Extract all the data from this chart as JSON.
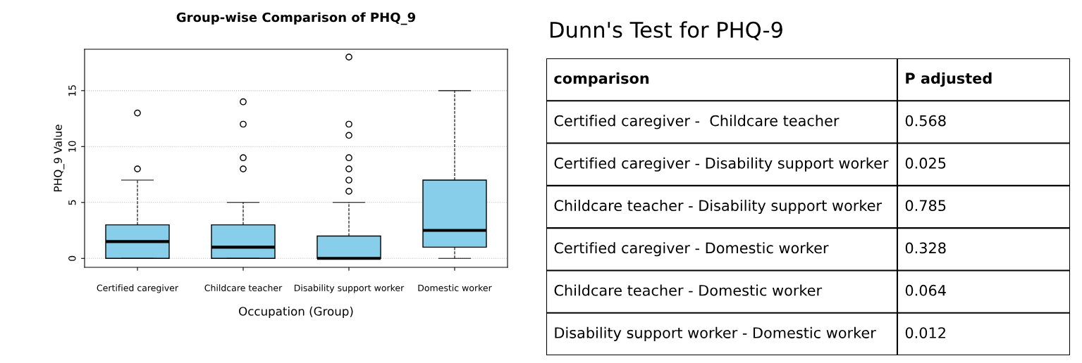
{
  "chart_data": [
    {
      "type": "box",
      "title": "Group-wise Comparison of PHQ_9",
      "xlabel": "Occupation (Group)",
      "ylabel": "PHQ_9 Value",
      "categories": [
        "Certified caregiver",
        "Childcare teacher",
        "Disability support worker",
        "Domestic worker"
      ],
      "color": "#87ceeb",
      "boxes": [
        {
          "low": 0,
          "q1": 0,
          "median": 1.5,
          "q3": 3,
          "high": 7,
          "outliers": [
            8,
            13
          ]
        },
        {
          "low": 0,
          "q1": 0,
          "median": 1,
          "q3": 3,
          "high": 5,
          "outliers": [
            8,
            9,
            12,
            14
          ]
        },
        {
          "low": 0,
          "q1": 0,
          "median": 0,
          "q3": 2,
          "high": 5,
          "outliers": [
            6,
            7,
            8,
            9,
            11,
            12,
            18
          ]
        },
        {
          "low": 0,
          "q1": 1,
          "median": 2.5,
          "q3": 7,
          "high": 15
        }
      ],
      "ylim": [
        -0.8,
        18.7
      ],
      "yticks": [
        0,
        5,
        10,
        15
      ],
      "grid": "y",
      "marker": "circle"
    },
    {
      "type": "other",
      "title": "Dunn's Test for PHQ-9",
      "categories": [
        "comparison",
        "P adjusted"
      ],
      "y_categories": [
        "Certified caregiver -  Childcare teacher",
        "Certified caregiver - Disability support worker",
        "Childcare teacher - Disability support worker",
        "Certified caregiver - Domestic worker",
        "Childcare teacher - Domestic worker",
        "Disability support worker - Domestic worker"
      ],
      "cell_labels": [
        [
          "0.568"
        ],
        [
          "0.025"
        ],
        [
          "0.785"
        ],
        [
          "0.328"
        ],
        [
          "0.064"
        ],
        [
          "0.012"
        ]
      ]
    }
  ]
}
